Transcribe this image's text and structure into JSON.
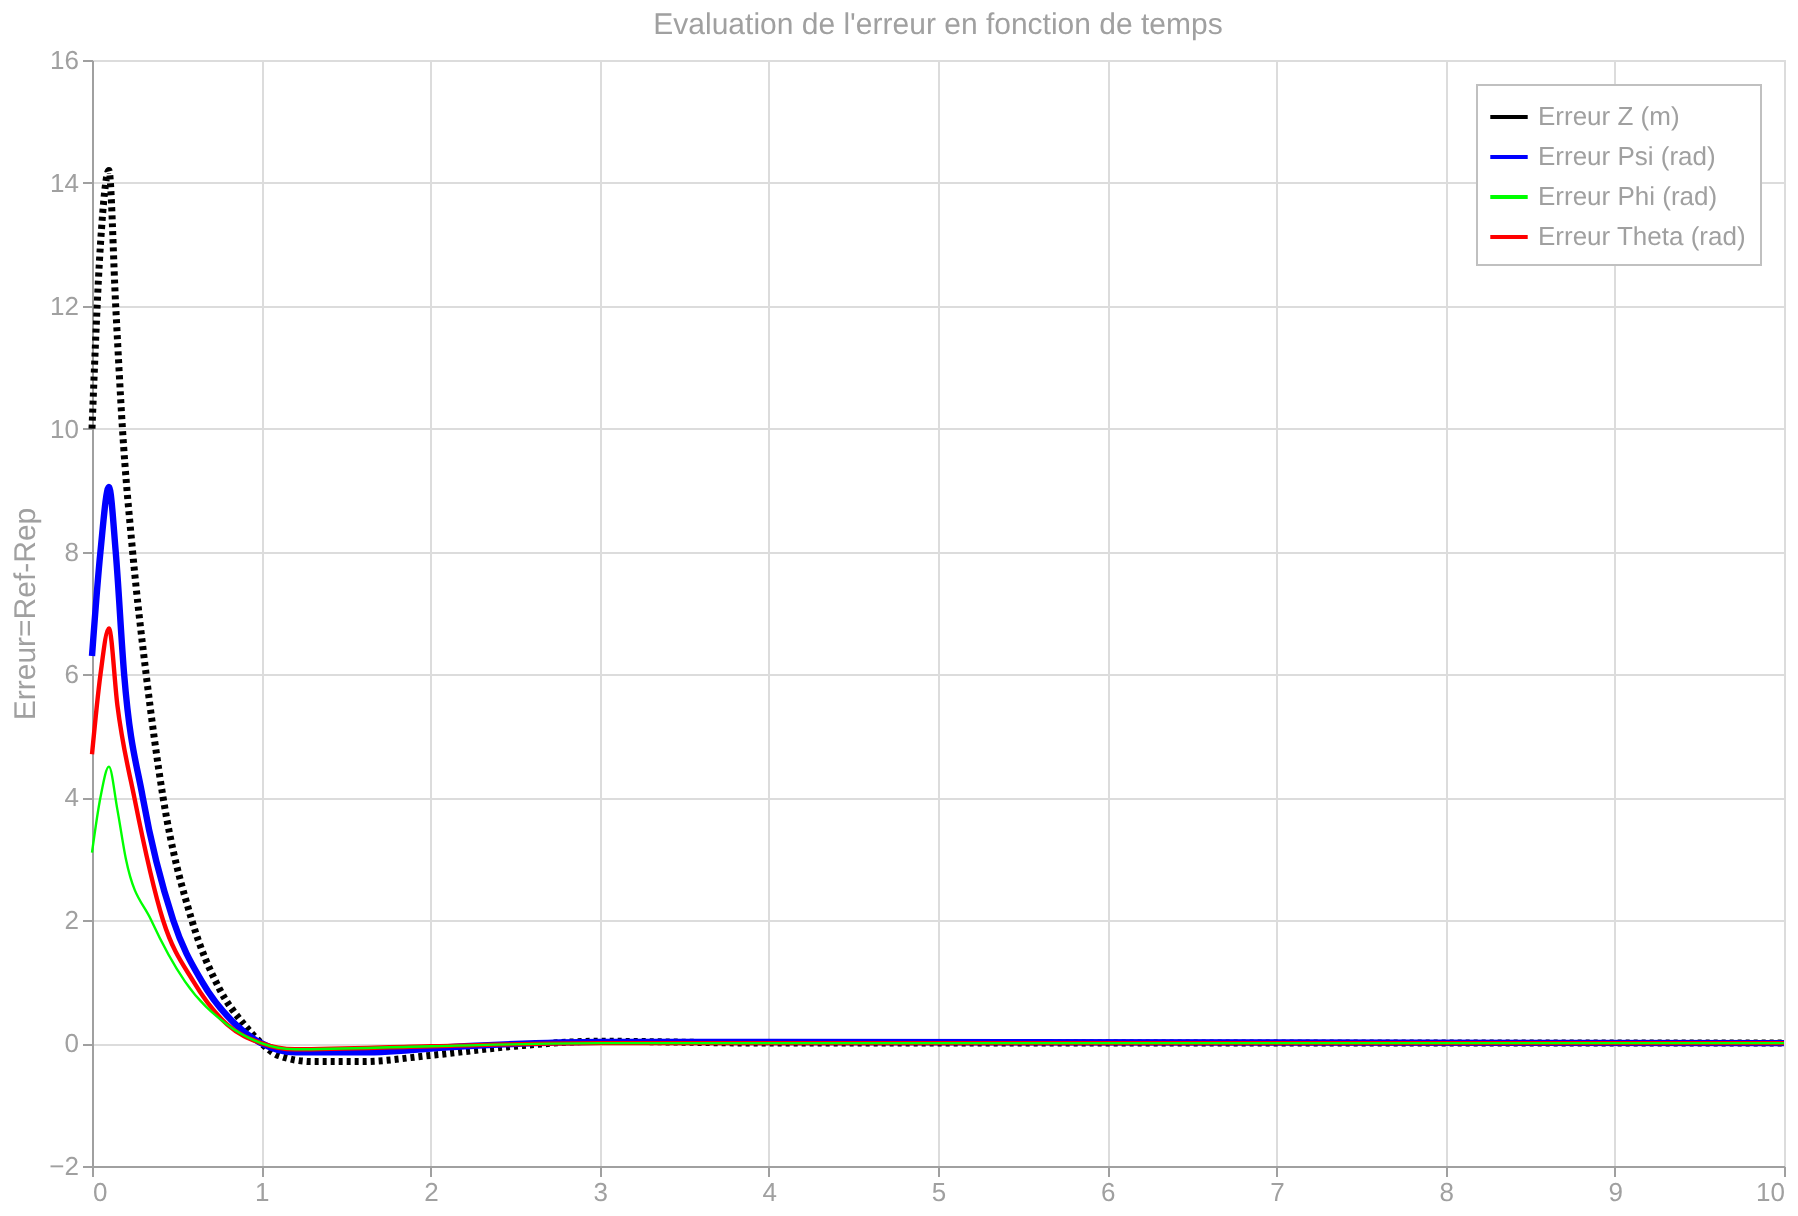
{
  "chart_data": {
    "type": "line",
    "title": "Evaluation de l'erreur en fonction de temps",
    "ylabel": "Erreur=Ref-Rep",
    "xlim": [
      0,
      10
    ],
    "ylim": [
      -2,
      16
    ],
    "xticks": [
      0,
      1,
      2,
      3,
      4,
      5,
      6,
      7,
      8,
      9,
      10
    ],
    "yticks": [
      -2,
      0,
      2,
      4,
      6,
      8,
      10,
      12,
      14,
      16
    ],
    "grid": true,
    "legend": "top right",
    "series": [
      {
        "name": "Erreur Z (m)",
        "color": "#000000",
        "line_style": "dotted",
        "x": [
          0,
          0.05,
          0.1,
          0.14,
          0.18,
          0.24,
          0.32,
          0.42,
          0.59,
          0.75,
          0.9,
          1.0,
          1.1,
          1.3,
          1.6,
          2.0,
          2.5,
          3.0,
          4.0,
          10.0
        ],
        "values": [
          10,
          13,
          14.2,
          12,
          10,
          8,
          6,
          4,
          2,
          0.9,
          0.3,
          0,
          -0.2,
          -0.3,
          -0.3,
          -0.2,
          -0.05,
          0.03,
          0,
          0
        ]
      },
      {
        "name": "Erreur Psi (rad)",
        "color": "#0000ff",
        "line_style": "solid",
        "x": [
          0,
          0.05,
          0.1,
          0.14,
          0.19,
          0.3,
          0.48,
          0.65,
          0.85,
          1.0,
          1.2,
          1.6,
          2.2,
          3.0,
          10.0
        ],
        "values": [
          6.3,
          8,
          9.05,
          8,
          6,
          4,
          2,
          1,
          0.3,
          0,
          -0.15,
          -0.15,
          -0.05,
          0.02,
          0
        ]
      },
      {
        "name": "Erreur Phi (rad)",
        "color": "#00ff00",
        "line_style": "solid",
        "x": [
          0,
          0.05,
          0.1,
          0.15,
          0.2,
          0.35,
          0.55,
          0.8,
          1.0,
          1.2,
          2.0,
          3.0,
          10.0
        ],
        "values": [
          3.1,
          4,
          4.5,
          3.8,
          3,
          2,
          1,
          0.3,
          0,
          -0.1,
          -0.05,
          0,
          0
        ]
      },
      {
        "name": "Erreur Theta (rad)",
        "color": "#ff0000",
        "line_style": "solid",
        "x": [
          0,
          0.05,
          0.1,
          0.15,
          0.25,
          0.42,
          0.6,
          0.8,
          1.0,
          1.2,
          2.0,
          3.0,
          10.0
        ],
        "values": [
          4.7,
          6,
          6.75,
          5.5,
          4,
          2,
          1,
          0.3,
          0,
          -0.1,
          -0.05,
          0,
          0
        ]
      }
    ]
  }
}
